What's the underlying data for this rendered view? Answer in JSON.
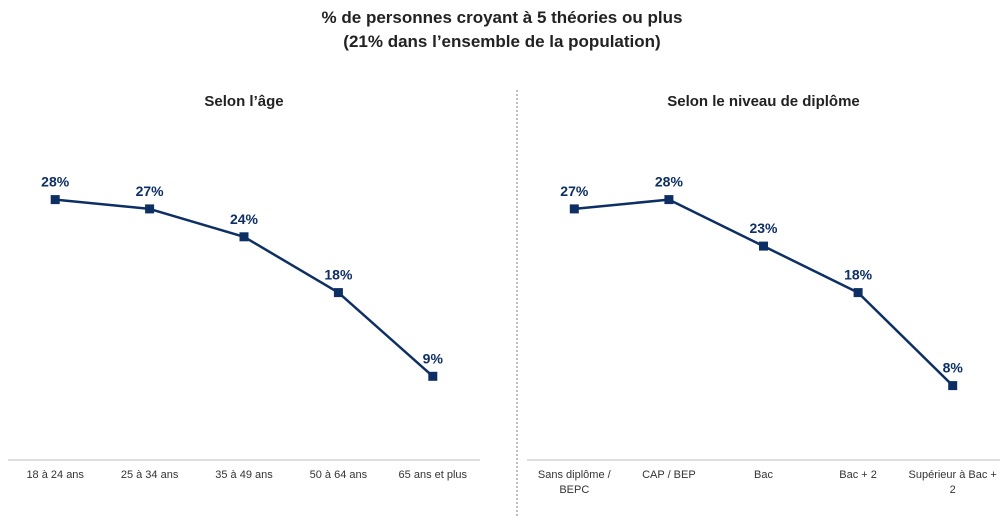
{
  "title_line1": "% de personnes croyant à 5 théories ou plus",
  "title_line2": "(21% dans l’ensemble de la population)",
  "colors": {
    "series": "#0d2f63",
    "axis": "#bfbfbf",
    "divider": "#7f7f7f"
  },
  "chart_data": [
    {
      "type": "line",
      "title": "Selon l’âge",
      "categories": [
        "18 à 24 ans",
        "25 à 34 ans",
        "35 à 49 ans",
        "50 à 64 ans",
        "65 ans et plus"
      ],
      "category_lines": [
        [
          "18 à 24 ans"
        ],
        [
          "25 à 34 ans"
        ],
        [
          "35 à 49 ans"
        ],
        [
          "50 à 64 ans"
        ],
        [
          "65 ans et plus"
        ]
      ],
      "values": [
        28,
        27,
        24,
        18,
        9
      ],
      "data_labels": [
        "28%",
        "27%",
        "24%",
        "18%",
        "9%"
      ],
      "ylim": [
        0,
        30
      ],
      "xlabel": "",
      "ylabel": "",
      "grid": false,
      "marker": "square"
    },
    {
      "type": "line",
      "title": "Selon le niveau de diplôme",
      "categories": [
        "Sans diplôme / BEPC",
        "CAP / BEP",
        "Bac",
        "Bac + 2",
        "Supérieur à Bac + 2"
      ],
      "category_lines": [
        [
          "Sans diplôme /",
          "BEPC"
        ],
        [
          "CAP / BEP"
        ],
        [
          "Bac"
        ],
        [
          "Bac + 2"
        ],
        [
          "Supérieur à Bac +",
          "2"
        ]
      ],
      "values": [
        27,
        28,
        23,
        18,
        8
      ],
      "data_labels": [
        "27%",
        "28%",
        "23%",
        "18%",
        "8%"
      ],
      "ylim": [
        0,
        30
      ],
      "xlabel": "",
      "ylabel": "",
      "grid": false,
      "marker": "square"
    }
  ]
}
